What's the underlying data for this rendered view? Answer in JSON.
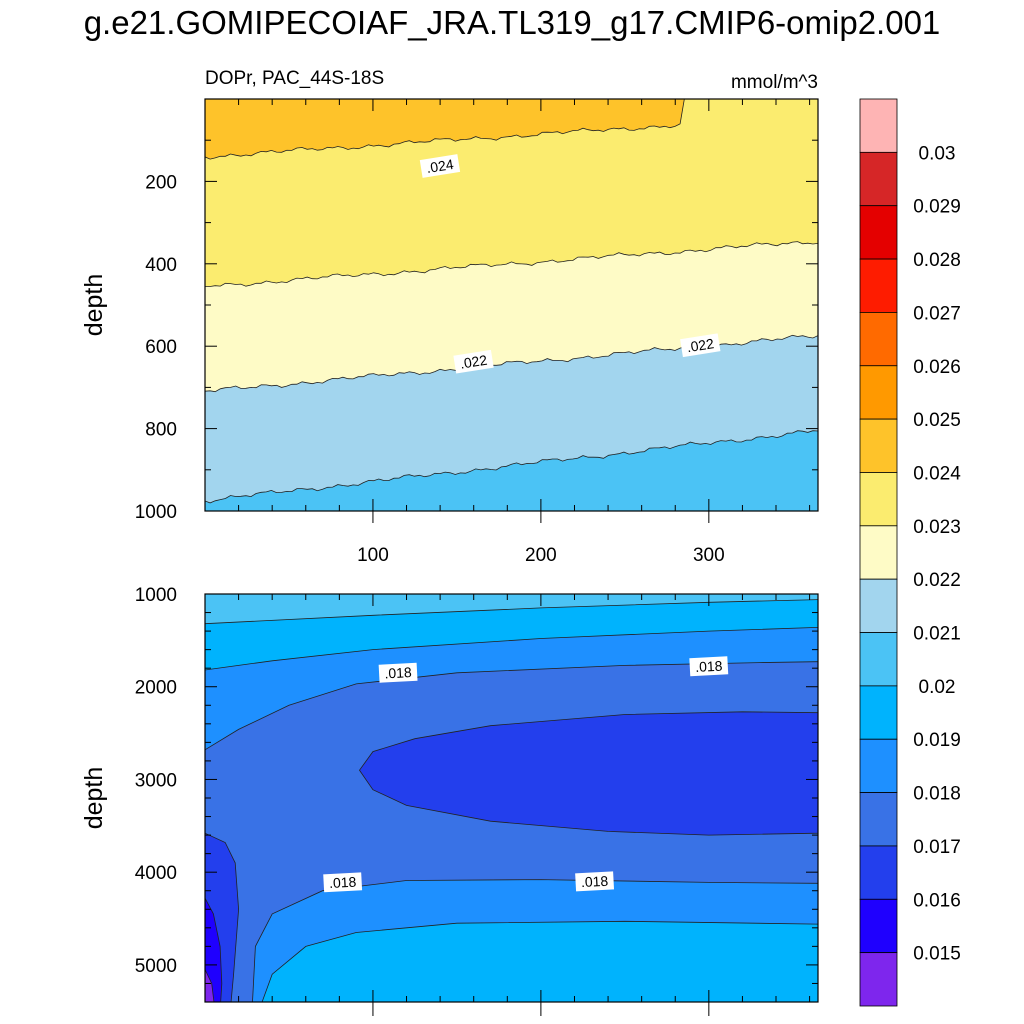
{
  "title": "g.e21.GOMIPECOIAF_JRA.TL319_g17.CMIP6-omip2.001",
  "chart_data": [
    {
      "type": "heatmap",
      "panel": "top",
      "left_label": "DOPr, PAC_44S-18S",
      "right_label": "mmol/m^3",
      "xlabel": "",
      "ylabel": "depth",
      "xlim": [
        0,
        365
      ],
      "ylim": [
        1000,
        0
      ],
      "x_ticks": [
        "100",
        "200",
        "300"
      ],
      "y_ticks": [
        "200",
        "400",
        "600",
        "800",
        "1000"
      ],
      "bands": [
        {
          "range": "0.021-0.0215",
          "color": "#4bc3f5",
          "boundary_depth": [
            1000,
            1000
          ]
        },
        {
          "range": "0.0215-0.022",
          "color": "#a2d5ee",
          "boundary_depth": [
            975,
            805
          ]
        },
        {
          "range": "0.022-0.0225",
          "color": "#fefbc6",
          "boundary_depth": [
            710,
            575
          ]
        },
        {
          "range": "0.0225-0.023",
          "color": "#fbec6f",
          "boundary_depth": [
            455,
            345
          ]
        },
        {
          "range": "0.023-0.024",
          "color": "#fec32a",
          "boundary_depth": [
            140,
            40
          ]
        }
      ],
      "contour_labels": [
        {
          "text": ".024",
          "x": 140,
          "depth": 165
        },
        {
          "text": ".022",
          "x": 160,
          "depth": 640
        },
        {
          "text": ".022",
          "x": 295,
          "depth": 600
        }
      ]
    },
    {
      "type": "heatmap",
      "panel": "bottom",
      "xlabel": "",
      "ylabel": "depth",
      "xlim": [
        0,
        365
      ],
      "ylim": [
        5400,
        1000
      ],
      "x_ticks": [
        "100",
        "200",
        "300"
      ],
      "y_ticks": [
        "1000",
        "2000",
        "3000",
        "4000",
        "5000"
      ],
      "contour_labels": [
        {
          "text": ".018",
          "x": 115,
          "depth": 1860
        },
        {
          "text": ".018",
          "x": 300,
          "depth": 1790
        },
        {
          "text": ".018",
          "x": 82,
          "depth": 4120
        },
        {
          "text": ".018",
          "x": 232,
          "depth": 4110
        }
      ]
    }
  ],
  "colorbar": {
    "labels": [
      "0.03",
      "0.029",
      "0.028",
      "0.027",
      "0.026",
      "0.025",
      "0.024",
      "0.023",
      "0.022",
      "0.021",
      "0.02",
      "0.019",
      "0.018",
      "0.017",
      "0.016",
      "0.015"
    ],
    "colors": [
      "#feb4b4",
      "#d62627",
      "#e40000",
      "#fe1c00",
      "#ff6a00",
      "#ff9900",
      "#fec32a",
      "#fbec6f",
      "#fefbc6",
      "#a2d5ee",
      "#4bc3f5",
      "#00b3fd",
      "#1e90ff",
      "#3972e6",
      "#233fed",
      "#1f00fe",
      "#7e26ed"
    ]
  }
}
